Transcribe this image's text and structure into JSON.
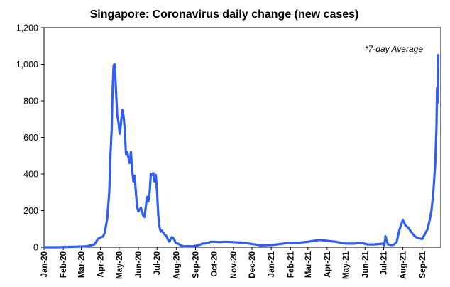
{
  "chart_data": {
    "type": "line",
    "title": "Singapore: Coronavirus daily change (new cases)",
    "annotation": "*7-day Average",
    "xlabel": "",
    "ylabel": "",
    "ylim": [
      0,
      1200
    ],
    "yticks": [
      "0",
      "200",
      "400",
      "600",
      "800",
      "1,000",
      "1,200"
    ],
    "yticks_values": [
      0,
      200,
      400,
      600,
      800,
      1000,
      1200
    ],
    "xticks": [
      "Jan-20",
      "Feb-20",
      "Mar-20",
      "Apr-20",
      "May-20",
      "Jun-20",
      "Jul-20",
      "Aug-20",
      "Sep-20",
      "Oct-20",
      "Nov-20",
      "Dec-20",
      "Jan-21",
      "Feb-21",
      "Mar-21",
      "Apr-21",
      "May-21",
      "Jun-21",
      "Jul-21",
      "Aug-21",
      "Sep-21"
    ],
    "grid": false,
    "legend": "none",
    "line_color": "#2f5ef0",
    "series": [
      {
        "x": [
          "2020-01-01",
          "2020-01-23",
          "2020-02-10",
          "2020-02-25",
          "2020-03-10",
          "2020-03-22",
          "2020-03-28",
          "2020-04-02",
          "2020-04-05",
          "2020-04-08",
          "2020-04-12",
          "2020-04-15",
          "2020-04-17",
          "2020-04-19",
          "2020-04-20",
          "2020-04-21",
          "2020-04-22",
          "2020-04-23",
          "2020-04-24",
          "2020-04-26",
          "2020-04-28",
          "2020-04-30",
          "2020-05-02",
          "2020-05-04",
          "2020-05-06",
          "2020-05-08",
          "2020-05-10",
          "2020-05-12",
          "2020-05-14",
          "2020-05-16",
          "2020-05-18",
          "2020-05-20",
          "2020-05-22",
          "2020-05-24",
          "2020-05-26",
          "2020-05-28",
          "2020-05-30",
          "2020-06-01",
          "2020-06-03",
          "2020-06-05",
          "2020-06-07",
          "2020-06-09",
          "2020-06-11",
          "2020-06-13",
          "2020-06-15",
          "2020-06-17",
          "2020-06-19",
          "2020-06-21",
          "2020-06-23",
          "2020-06-25",
          "2020-06-27",
          "2020-06-29",
          "2020-07-01",
          "2020-07-03",
          "2020-07-05",
          "2020-07-07",
          "2020-07-09",
          "2020-07-11",
          "2020-07-13",
          "2020-07-15",
          "2020-07-17",
          "2020-07-19",
          "2020-07-21",
          "2020-07-23",
          "2020-07-25",
          "2020-07-27",
          "2020-07-29",
          "2020-07-31",
          "2020-08-02",
          "2020-08-04",
          "2020-08-06",
          "2020-08-08",
          "2020-08-10",
          "2020-08-12",
          "2020-08-14",
          "2020-08-17",
          "2020-08-20",
          "2020-08-24",
          "2020-08-28",
          "2020-09-01",
          "2020-09-05",
          "2020-09-09",
          "2020-09-12",
          "2020-09-15",
          "2020-09-18",
          "2020-09-22",
          "2020-09-26",
          "2020-10-01",
          "2020-10-10",
          "2020-10-20",
          "2020-11-01",
          "2020-11-15",
          "2020-12-01",
          "2020-12-15",
          "2021-01-01",
          "2021-01-10",
          "2021-01-20",
          "2021-02-01",
          "2021-02-15",
          "2021-03-01",
          "2021-03-20",
          "2021-04-01",
          "2021-04-15",
          "2021-05-01",
          "2021-05-15",
          "2021-05-25",
          "2021-06-05",
          "2021-06-15",
          "2021-06-25",
          "2021-07-01",
          "2021-07-02",
          "2021-07-04",
          "2021-07-08",
          "2021-07-14",
          "2021-07-18",
          "2021-07-22",
          "2021-07-26",
          "2021-08-01",
          "2021-08-05",
          "2021-08-10",
          "2021-08-15",
          "2021-08-20",
          "2021-08-25",
          "2021-09-01",
          "2021-09-05",
          "2021-09-10",
          "2021-09-13",
          "2021-09-16",
          "2021-09-19",
          "2021-09-22",
          "2021-09-24",
          "2021-09-25",
          "2021-09-26",
          "2021-09-27"
        ],
        "values": [
          0,
          0,
          2,
          3,
          5,
          15,
          45,
          55,
          58,
          80,
          160,
          300,
          500,
          650,
          800,
          900,
          990,
          1000,
          1000,
          850,
          720,
          680,
          620,
          680,
          750,
          720,
          650,
          510,
          520,
          490,
          460,
          520,
          420,
          360,
          390,
          300,
          220,
          195,
          205,
          215,
          195,
          170,
          165,
          225,
          275,
          250,
          290,
          400,
          395,
          405,
          360,
          395,
          310,
          175,
          110,
          85,
          90,
          80,
          70,
          65,
          55,
          40,
          30,
          45,
          55,
          50,
          40,
          25,
          20,
          20,
          15,
          10,
          8,
          6,
          5,
          5,
          6,
          5,
          5,
          8,
          10,
          15,
          20,
          20,
          22,
          25,
          30,
          30,
          28,
          30,
          28,
          25,
          18,
          10,
          12,
          15,
          20,
          25,
          25,
          30,
          40,
          35,
          30,
          20,
          20,
          25,
          15,
          15,
          18,
          20,
          10,
          60,
          15,
          12,
          15,
          30,
          90,
          150,
          120,
          105,
          80,
          60,
          50,
          45,
          70,
          100,
          150,
          200,
          300,
          450,
          650,
          870,
          790,
          1050
        ]
      }
    ]
  }
}
